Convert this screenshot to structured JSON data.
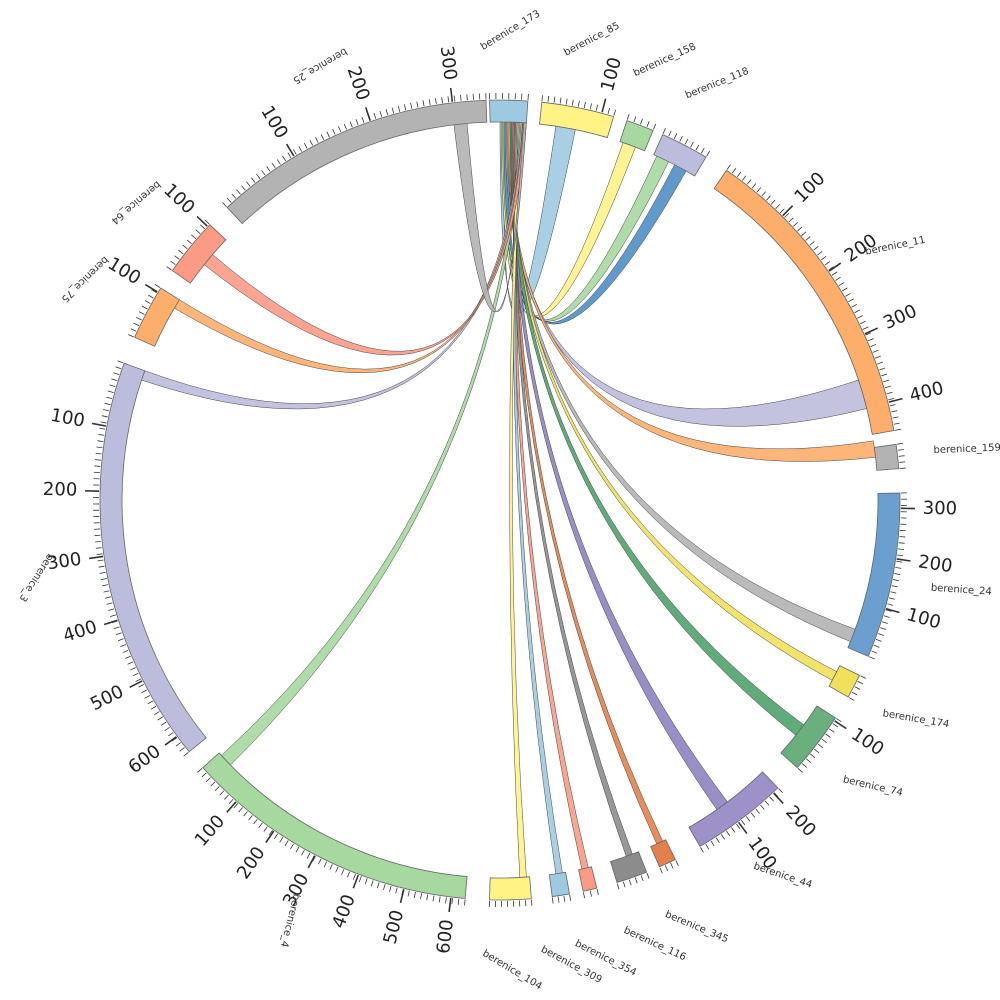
{
  "colors": {
    "background": "#ffffff",
    "ribbon_stroke": "#444444"
  },
  "segments": [
    {
      "id": "b173",
      "label": "berenice_173",
      "color": "#9ecae1",
      "ticks": []
    },
    {
      "id": "b85",
      "label": "berenice_85",
      "color": "#fff385",
      "ticks": [
        100
      ]
    },
    {
      "id": "b158",
      "label": "berenice_158",
      "color": "#a6d8a0",
      "ticks": []
    },
    {
      "id": "b118",
      "label": "berenice_118",
      "color": "#bcbddc",
      "ticks": []
    },
    {
      "id": "b11",
      "label": "berenice_11",
      "color": "#fdae6b",
      "ticks": [
        100,
        200,
        300,
        400
      ]
    },
    {
      "id": "b159",
      "label": "berenice_159",
      "color": "#b3b3b3",
      "ticks": []
    },
    {
      "id": "b24",
      "label": "berenice_24",
      "color": "#6a9fd0",
      "ticks": [
        100,
        200,
        300
      ]
    },
    {
      "id": "b174",
      "label": "berenice_174",
      "color": "#efe15a",
      "ticks": []
    },
    {
      "id": "b74",
      "label": "berenice_74",
      "color": "#6ab07f",
      "ticks": [
        100
      ]
    },
    {
      "id": "b44",
      "label": "berenice_44",
      "color": "#9e90c8",
      "ticks": [
        100,
        200
      ]
    },
    {
      "id": "b345",
      "label": "berenice_345",
      "color": "#e6804a",
      "ticks": []
    },
    {
      "id": "b116",
      "label": "berenice_116",
      "color": "#8c8c8c",
      "ticks": []
    },
    {
      "id": "b354",
      "label": "berenice_354",
      "color": "#fb9a85",
      "ticks": []
    },
    {
      "id": "b309",
      "label": "berenice_309",
      "color": "#9ecae1",
      "ticks": []
    },
    {
      "id": "b104",
      "label": "berenice_104",
      "color": "#fff385",
      "ticks": []
    },
    {
      "id": "b4",
      "label": "berenice_4",
      "color": "#a6d8a0",
      "ticks": [
        100,
        200,
        300,
        400,
        500,
        600
      ]
    },
    {
      "id": "b3",
      "label": "berenice_3",
      "color": "#bcbddc",
      "ticks": [
        100,
        200,
        300,
        400,
        500,
        600
      ]
    },
    {
      "id": "b75",
      "label": "berenice_75",
      "color": "#fdae6b",
      "ticks": [
        100
      ]
    },
    {
      "id": "b64",
      "label": "berenice_64",
      "color": "#fb9a85",
      "ticks": [
        100
      ]
    },
    {
      "id": "b25",
      "label": "berenice_25",
      "color": "#b3b3b3",
      "ticks": [
        100,
        200,
        300
      ]
    }
  ],
  "links": [
    {
      "from": "b173",
      "to": "b85",
      "color": "#9ecae1"
    },
    {
      "from": "b173",
      "to": "b158",
      "color": "#fff385"
    },
    {
      "from": "b173",
      "to": "b118",
      "color": "#a6d8a0"
    },
    {
      "from": "b173",
      "to": "b11",
      "color": "#4f8fc8"
    },
    {
      "from": "b173",
      "to": "b11",
      "color": "#bcbddc"
    },
    {
      "from": "b173",
      "to": "b159",
      "color": "#fdae6b"
    },
    {
      "from": "b173",
      "to": "b24",
      "color": "#b3b3b3"
    },
    {
      "from": "b173",
      "to": "b174",
      "color": "#efe15a"
    },
    {
      "from": "b173",
      "to": "b74",
      "color": "#4ea36b"
    },
    {
      "from": "b173",
      "to": "b44",
      "color": "#8e82c0"
    },
    {
      "from": "b173",
      "to": "b345",
      "color": "#e6804a"
    },
    {
      "from": "b173",
      "to": "b116",
      "color": "#8c8c8c"
    },
    {
      "from": "b173",
      "to": "b354",
      "color": "#fb9a85"
    },
    {
      "from": "b173",
      "to": "b309",
      "color": "#9ecae1"
    },
    {
      "from": "b173",
      "to": "b104",
      "color": "#fff385"
    },
    {
      "from": "b173",
      "to": "b4",
      "color": "#a6d8a0"
    },
    {
      "from": "b173",
      "to": "b3",
      "color": "#bcbddc"
    },
    {
      "from": "b173",
      "to": "b75",
      "color": "#fdae6b"
    },
    {
      "from": "b173",
      "to": "b64",
      "color": "#fb9a85"
    },
    {
      "from": "b173",
      "to": "b25",
      "color": "#b3b3b3"
    }
  ]
}
